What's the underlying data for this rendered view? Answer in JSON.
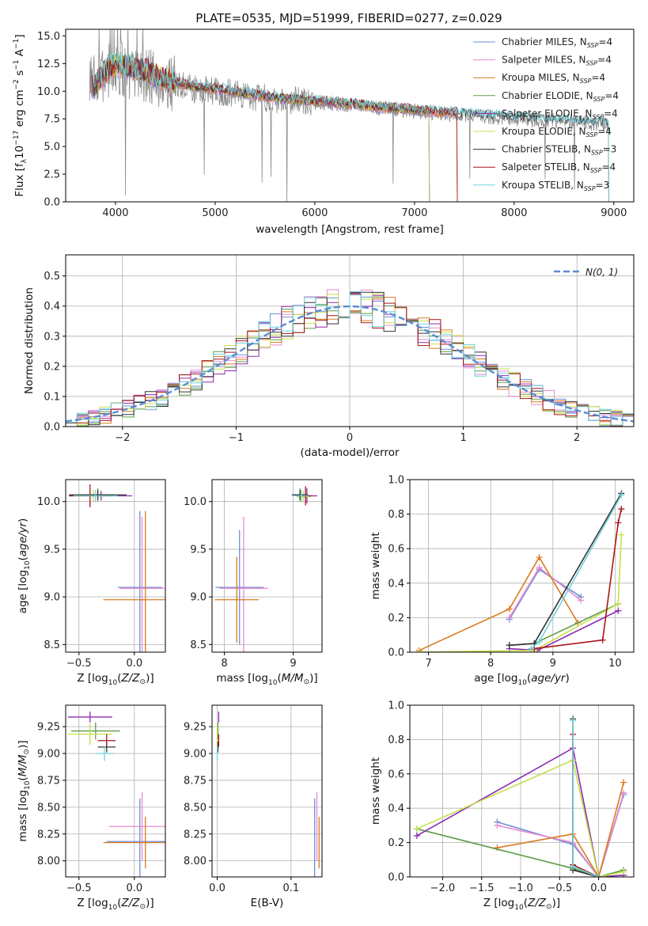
{
  "figure": {
    "title": "PLATE=0535, MJD=51999, FIBERID=0277, z=0.029"
  },
  "models": [
    {
      "name": "Chabrier MILES, N",
      "nssp": "=4",
      "color": "#6b8fd6"
    },
    {
      "name": "Salpeter MILES, N",
      "nssp": "=4",
      "color": "#e98ad0"
    },
    {
      "name": "Kroupa MILES, N",
      "nssp": "=4",
      "color": "#d97a1f"
    },
    {
      "name": "Chabrier ELODIE, N",
      "nssp": "=4",
      "color": "#5f9c4a"
    },
    {
      "name": "Salpeter ELODIE, N",
      "nssp": "=4",
      "color": "#8e2bb0"
    },
    {
      "name": "Kroupa ELODIE, N",
      "nssp": "=4",
      "color": "#c4e04a"
    },
    {
      "name": "Chabrier STELIB, N",
      "nssp": "=3",
      "color": "#333333"
    },
    {
      "name": "Salpeter STELIB, N",
      "nssp": "=4",
      "color": "#a8141c"
    },
    {
      "name": "Kroupa STELIB, N",
      "nssp": "=3",
      "color": "#6fd3de"
    }
  ],
  "chart_data": [
    {
      "id": "spectrum",
      "type": "line",
      "xlabel": "wavelength [Angstrom, rest frame]",
      "ylabel": "Flux [f",
      "xlim": [
        3500,
        9200
      ],
      "ylim": [
        0,
        15.6
      ],
      "xticks": [
        "4000",
        "5000",
        "6000",
        "7000",
        "8000",
        "9000"
      ],
      "xtick_values": [
        4000,
        5000,
        6000,
        7000,
        8000,
        9000
      ],
      "yticks": [
        "0.0",
        "2.5",
        "5.0",
        "7.5",
        "10.0",
        "12.5",
        "15.0"
      ],
      "ytick_values": [
        0,
        2.5,
        5,
        7.5,
        10,
        12.5,
        15
      ],
      "data_continuum": {
        "x": [
          3750,
          3900,
          4000,
          4100,
          4300,
          4500,
          4800,
          5000,
          5300,
          5600,
          6000,
          6300,
          6600,
          7000,
          7300,
          7600,
          7900,
          8200,
          8500,
          8800,
          8950
        ],
        "y": [
          10.5,
          11.5,
          12.2,
          12.0,
          11.5,
          10.8,
          10.2,
          10.0,
          9.6,
          9.3,
          9.0,
          8.8,
          8.5,
          8.2,
          8.0,
          7.8,
          7.6,
          7.4,
          7.3,
          7.1,
          7.0
        ]
      },
      "model_continuum": {
        "x": [
          3750,
          3900,
          4000,
          4100,
          4300,
          4500,
          4800,
          5000,
          5300,
          5600,
          6000,
          6300,
          6600,
          7000,
          7300,
          7600,
          7900,
          8200,
          8500,
          8800,
          8950
        ],
        "y": [
          10.0,
          11.8,
          12.4,
          12.3,
          11.8,
          11.0,
          10.4,
          10.2,
          9.8,
          9.4,
          9.1,
          8.9,
          8.6,
          8.3,
          8.1,
          7.9,
          7.7,
          7.5,
          7.4,
          7.2,
          7.1
        ]
      },
      "model_xmax": [
        7430,
        7430,
        7430,
        7150,
        7150,
        7150,
        8950,
        7430,
        8950
      ]
    },
    {
      "id": "residual-histogram",
      "type": "line",
      "xlabel": "(data-model)/error",
      "ylabel": "Normed distribution",
      "xlim": [
        -2.5,
        2.5
      ],
      "ylim": [
        0,
        0.57
      ],
      "xticks": [
        "−2",
        "−1",
        "0",
        "1",
        "2"
      ],
      "xtick_values": [
        -2,
        -1,
        0,
        1,
        2
      ],
      "yticks": [
        "0.0",
        "0.1",
        "0.2",
        "0.3",
        "0.4",
        "0.5"
      ],
      "ytick_values": [
        0,
        0.1,
        0.2,
        0.3,
        0.4,
        0.5
      ],
      "legend": "N(0, 1)",
      "bin_width": 0.1
    },
    {
      "id": "age-vs-Z",
      "type": "scatter",
      "xlabel": "Z [log",
      "ylabel": "age  [log",
      "xlim": [
        -0.62,
        0.28
      ],
      "ylim": [
        8.42,
        10.23
      ],
      "xticks": [
        "−0.5",
        "0.0"
      ],
      "xtick_values": [
        -0.5,
        0
      ],
      "yticks": [
        "8.5",
        "9.0",
        "9.5",
        "10.0"
      ],
      "ytick_values": [
        8.5,
        9,
        9.5,
        10
      ],
      "errorbars": [
        {
          "model": 0,
          "x": 0.05,
          "y": 9.1,
          "xerr": 0.2,
          "yerr": 0.8
        },
        {
          "model": 1,
          "x": 0.07,
          "y": 9.09,
          "xerr": 0.2,
          "yerr": 0.75
        },
        {
          "model": 2,
          "x": 0.1,
          "y": 8.97,
          "xerr": 0.38,
          "yerr": 0.93
        },
        {
          "model": 3,
          "x": -0.33,
          "y": 10.07,
          "xerr": 0.15,
          "yerr": 0.07
        },
        {
          "model": 4,
          "x": -0.3,
          "y": 10.06,
          "xerr": 0.28,
          "yerr": 0.05
        },
        {
          "model": 5,
          "x": -0.37,
          "y": 10.06,
          "xerr": 0.22,
          "yerr": 0.06
        },
        {
          "model": 6,
          "x": -0.33,
          "y": 10.07,
          "xerr": 0.26,
          "yerr": 0.05
        },
        {
          "model": 7,
          "x": -0.4,
          "y": 10.06,
          "xerr": 0.19,
          "yerr": 0.12
        },
        {
          "model": 8,
          "x": -0.35,
          "y": 10.06,
          "xerr": 0.2,
          "yerr": 0.06
        }
      ]
    },
    {
      "id": "age-vs-mass",
      "type": "scatter",
      "xlabel": "mass [log",
      "xlim": [
        7.82,
        9.42
      ],
      "ylim": [
        8.42,
        10.23
      ],
      "xticks": [
        "8",
        "9"
      ],
      "xtick_values": [
        8,
        9
      ],
      "yticks": [
        "8.5",
        "9.0",
        "9.5",
        "10.0"
      ],
      "ytick_values": [
        8.5,
        9,
        9.5,
        10
      ],
      "errorbars": [
        {
          "model": 0,
          "x": 8.22,
          "y": 9.1,
          "xerr": 0.35,
          "yerr": 0.6
        },
        {
          "model": 1,
          "x": 8.28,
          "y": 9.09,
          "xerr": 0.35,
          "yerr": 0.75
        },
        {
          "model": 2,
          "x": 8.18,
          "y": 8.97,
          "xerr": 0.32,
          "yerr": 0.45
        },
        {
          "model": 3,
          "x": 9.1,
          "y": 10.07,
          "xerr": 0.1,
          "yerr": 0.07
        },
        {
          "model": 4,
          "x": 9.2,
          "y": 10.06,
          "xerr": 0.15,
          "yerr": 0.08
        },
        {
          "model": 5,
          "x": 9.15,
          "y": 10.05,
          "xerr": 0.1,
          "yerr": 0.06
        },
        {
          "model": 6,
          "x": 9.1,
          "y": 10.07,
          "xerr": 0.12,
          "yerr": 0.05
        },
        {
          "model": 7,
          "x": 9.18,
          "y": 10.06,
          "xerr": 0.1,
          "yerr": 0.1
        },
        {
          "model": 8,
          "x": 9.12,
          "y": 10.06,
          "xerr": 0.1,
          "yerr": 0.06
        }
      ]
    },
    {
      "id": "mass-weight-vs-age",
      "type": "line",
      "xlabel": "age  [log",
      "ylabel": "mass weight",
      "xlim": [
        6.7,
        10.3
      ],
      "ylim": [
        0,
        1
      ],
      "xticks": [
        "7",
        "8",
        "9",
        "10"
      ],
      "xtick_values": [
        7,
        8,
        9,
        10
      ],
      "yticks": [
        "0.0",
        "0.2",
        "0.4",
        "0.6",
        "0.8",
        "1.0"
      ],
      "ytick_values": [
        0,
        0.2,
        0.4,
        0.6,
        0.8,
        1
      ],
      "series": [
        {
          "model": 0,
          "x": [
            8.3,
            8.78,
            9.45
          ],
          "y": [
            0.19,
            0.48,
            0.32
          ]
        },
        {
          "model": 1,
          "x": [
            8.3,
            8.78,
            9.45
          ],
          "y": [
            0.2,
            0.49,
            0.3
          ]
        },
        {
          "model": 2,
          "x": [
            6.85,
            8.3,
            8.78,
            9.4
          ],
          "y": [
            0.01,
            0.25,
            0.55,
            0.17
          ]
        },
        {
          "model": 3,
          "x": [
            8.3,
            8.7,
            10.05
          ],
          "y": [
            0.04,
            0.05,
            0.28
          ]
        },
        {
          "model": 4,
          "x": [
            8.3,
            8.75,
            10.05
          ],
          "y": [
            0.02,
            0.01,
            0.24
          ]
        },
        {
          "model": 5,
          "x": [
            6.85,
            8.7,
            10.05,
            10.1
          ],
          "y": [
            0.0,
            0.01,
            0.28,
            0.68
          ]
        },
        {
          "model": 6,
          "x": [
            8.3,
            8.7,
            10.1
          ],
          "y": [
            0.04,
            0.05,
            0.92
          ]
        },
        {
          "model": 7,
          "x": [
            8.7,
            9.8,
            10.05,
            10.1
          ],
          "y": [
            0.02,
            0.07,
            0.75,
            0.83
          ]
        },
        {
          "model": 8,
          "x": [
            8.65,
            8.78,
            10.1
          ],
          "y": [
            0.02,
            0.06,
            0.91
          ]
        }
      ]
    },
    {
      "id": "mass-vs-Z",
      "type": "scatter",
      "xlabel": "Z [log",
      "ylabel": "mass [log",
      "xlim": [
        -0.62,
        0.28
      ],
      "ylim": [
        7.85,
        9.45
      ],
      "xticks": [
        "−0.5",
        "0.0"
      ],
      "xtick_values": [
        -0.5,
        0
      ],
      "yticks": [
        "8.00",
        "8.25",
        "8.50",
        "8.75",
        "9.00",
        "9.25"
      ],
      "ytick_values": [
        8,
        8.25,
        8.5,
        8.75,
        9,
        9.25
      ],
      "errorbars": [
        {
          "model": 0,
          "x": 0.05,
          "y": 8.18,
          "xerr": 0.3,
          "yerr": 0.4
        },
        {
          "model": 1,
          "x": 0.07,
          "y": 8.32,
          "xerr": 0.3,
          "yerr": 0.32
        },
        {
          "model": 2,
          "x": 0.1,
          "y": 8.17,
          "xerr": 0.38,
          "yerr": 0.24
        },
        {
          "model": 3,
          "x": -0.35,
          "y": 9.21,
          "xerr": 0.22,
          "yerr": 0.08
        },
        {
          "model": 4,
          "x": -0.4,
          "y": 9.34,
          "xerr": 0.2,
          "yerr": 0.05
        },
        {
          "model": 5,
          "x": -0.4,
          "y": 9.18,
          "xerr": 0.2,
          "yerr": 0.1
        },
        {
          "model": 6,
          "x": -0.25,
          "y": 9.06,
          "xerr": 0.08,
          "yerr": 0.05
        },
        {
          "model": 7,
          "x": -0.25,
          "y": 9.12,
          "xerr": 0.08,
          "yerr": 0.06
        },
        {
          "model": 8,
          "x": -0.27,
          "y": 9.0,
          "xerr": 0.08,
          "yerr": 0.07
        }
      ]
    },
    {
      "id": "mass-vs-EBV",
      "type": "scatter",
      "xlabel": "E(B-V)",
      "xlim": [
        -0.007,
        0.142
      ],
      "ylim": [
        7.85,
        9.45
      ],
      "xticks": [
        "0.0",
        "0.1"
      ],
      "xtick_values": [
        0,
        0.1
      ],
      "yticks": [
        "8.00",
        "8.25",
        "8.50",
        "8.75",
        "9.00",
        "9.25"
      ],
      "ytick_values": [
        8,
        8.25,
        8.5,
        8.75,
        9,
        9.25
      ],
      "errorbars": [
        {
          "model": 0,
          "x": 0.132,
          "y": 8.18,
          "xerr": 0,
          "yerr": 0.4
        },
        {
          "model": 1,
          "x": 0.135,
          "y": 8.32,
          "xerr": 0,
          "yerr": 0.32
        },
        {
          "model": 2,
          "x": 0.138,
          "y": 8.17,
          "xerr": 0,
          "yerr": 0.24
        },
        {
          "model": 3,
          "x": 0.001,
          "y": 9.21,
          "xerr": 0,
          "yerr": 0.08
        },
        {
          "model": 4,
          "x": 0.002,
          "y": 9.34,
          "xerr": 0,
          "yerr": 0.05
        },
        {
          "model": 5,
          "x": 0.0,
          "y": 9.18,
          "xerr": 0,
          "yerr": 0.1
        },
        {
          "model": 6,
          "x": 0.001,
          "y": 9.06,
          "xerr": 0,
          "yerr": 0.05
        },
        {
          "model": 7,
          "x": 0.002,
          "y": 9.12,
          "xerr": 0,
          "yerr": 0.06
        },
        {
          "model": 8,
          "x": 0.0,
          "y": 9.0,
          "xerr": 0,
          "yerr": 0.07
        }
      ]
    },
    {
      "id": "mass-weight-vs-Z",
      "type": "line",
      "xlabel": "Z [log",
      "ylabel": "mass weight",
      "xlim": [
        -2.42,
        0.45
      ],
      "ylim": [
        0,
        1
      ],
      "xticks": [
        "−2.0",
        "−1.5",
        "−1.0",
        "−0.5",
        "0.0"
      ],
      "xtick_values": [
        -2,
        -1.5,
        -1,
        -0.5,
        0
      ],
      "yticks": [
        "0.0",
        "0.2",
        "0.4",
        "0.6",
        "0.8",
        "1.0"
      ],
      "ytick_values": [
        0,
        0.2,
        0.4,
        0.6,
        0.8,
        1
      ],
      "series": [
        {
          "model": 0,
          "x": [
            -1.3,
            -0.33,
            0.0,
            0.32
          ],
          "y": [
            0.32,
            0.19,
            0.0,
            0.48
          ]
        },
        {
          "model": 1,
          "x": [
            -1.3,
            -0.33,
            0.0,
            0.32
          ],
          "y": [
            0.3,
            0.2,
            0.0,
            0.49
          ]
        },
        {
          "model": 2,
          "x": [
            -1.3,
            -0.33,
            0.0,
            0.32
          ],
          "y": [
            0.17,
            0.25,
            0.0,
            0.55
          ]
        },
        {
          "model": 3,
          "x": [
            -2.33,
            -0.33,
            0.0,
            0.32
          ],
          "y": [
            0.28,
            0.05,
            0.0,
            0.04
          ]
        },
        {
          "model": 4,
          "x": [
            -2.33,
            -0.33,
            0.0,
            0.32
          ],
          "y": [
            0.24,
            0.75,
            0.0,
            0.01
          ]
        },
        {
          "model": 5,
          "x": [
            -2.33,
            -0.33,
            0.0,
            0.32
          ],
          "y": [
            0.28,
            0.68,
            0.0,
            0.03
          ]
        },
        {
          "model": 6,
          "x": [
            -0.33,
            -0.33,
            0.0
          ],
          "y": [
            0.92,
            0.04,
            0.0
          ]
        },
        {
          "model": 7,
          "x": [
            -0.33,
            -0.33,
            0.0
          ],
          "y": [
            0.83,
            0.07,
            0.0
          ]
        },
        {
          "model": 8,
          "x": [
            -0.33,
            -0.33,
            0.0
          ],
          "y": [
            0.91,
            0.06,
            0.0
          ]
        }
      ]
    }
  ]
}
